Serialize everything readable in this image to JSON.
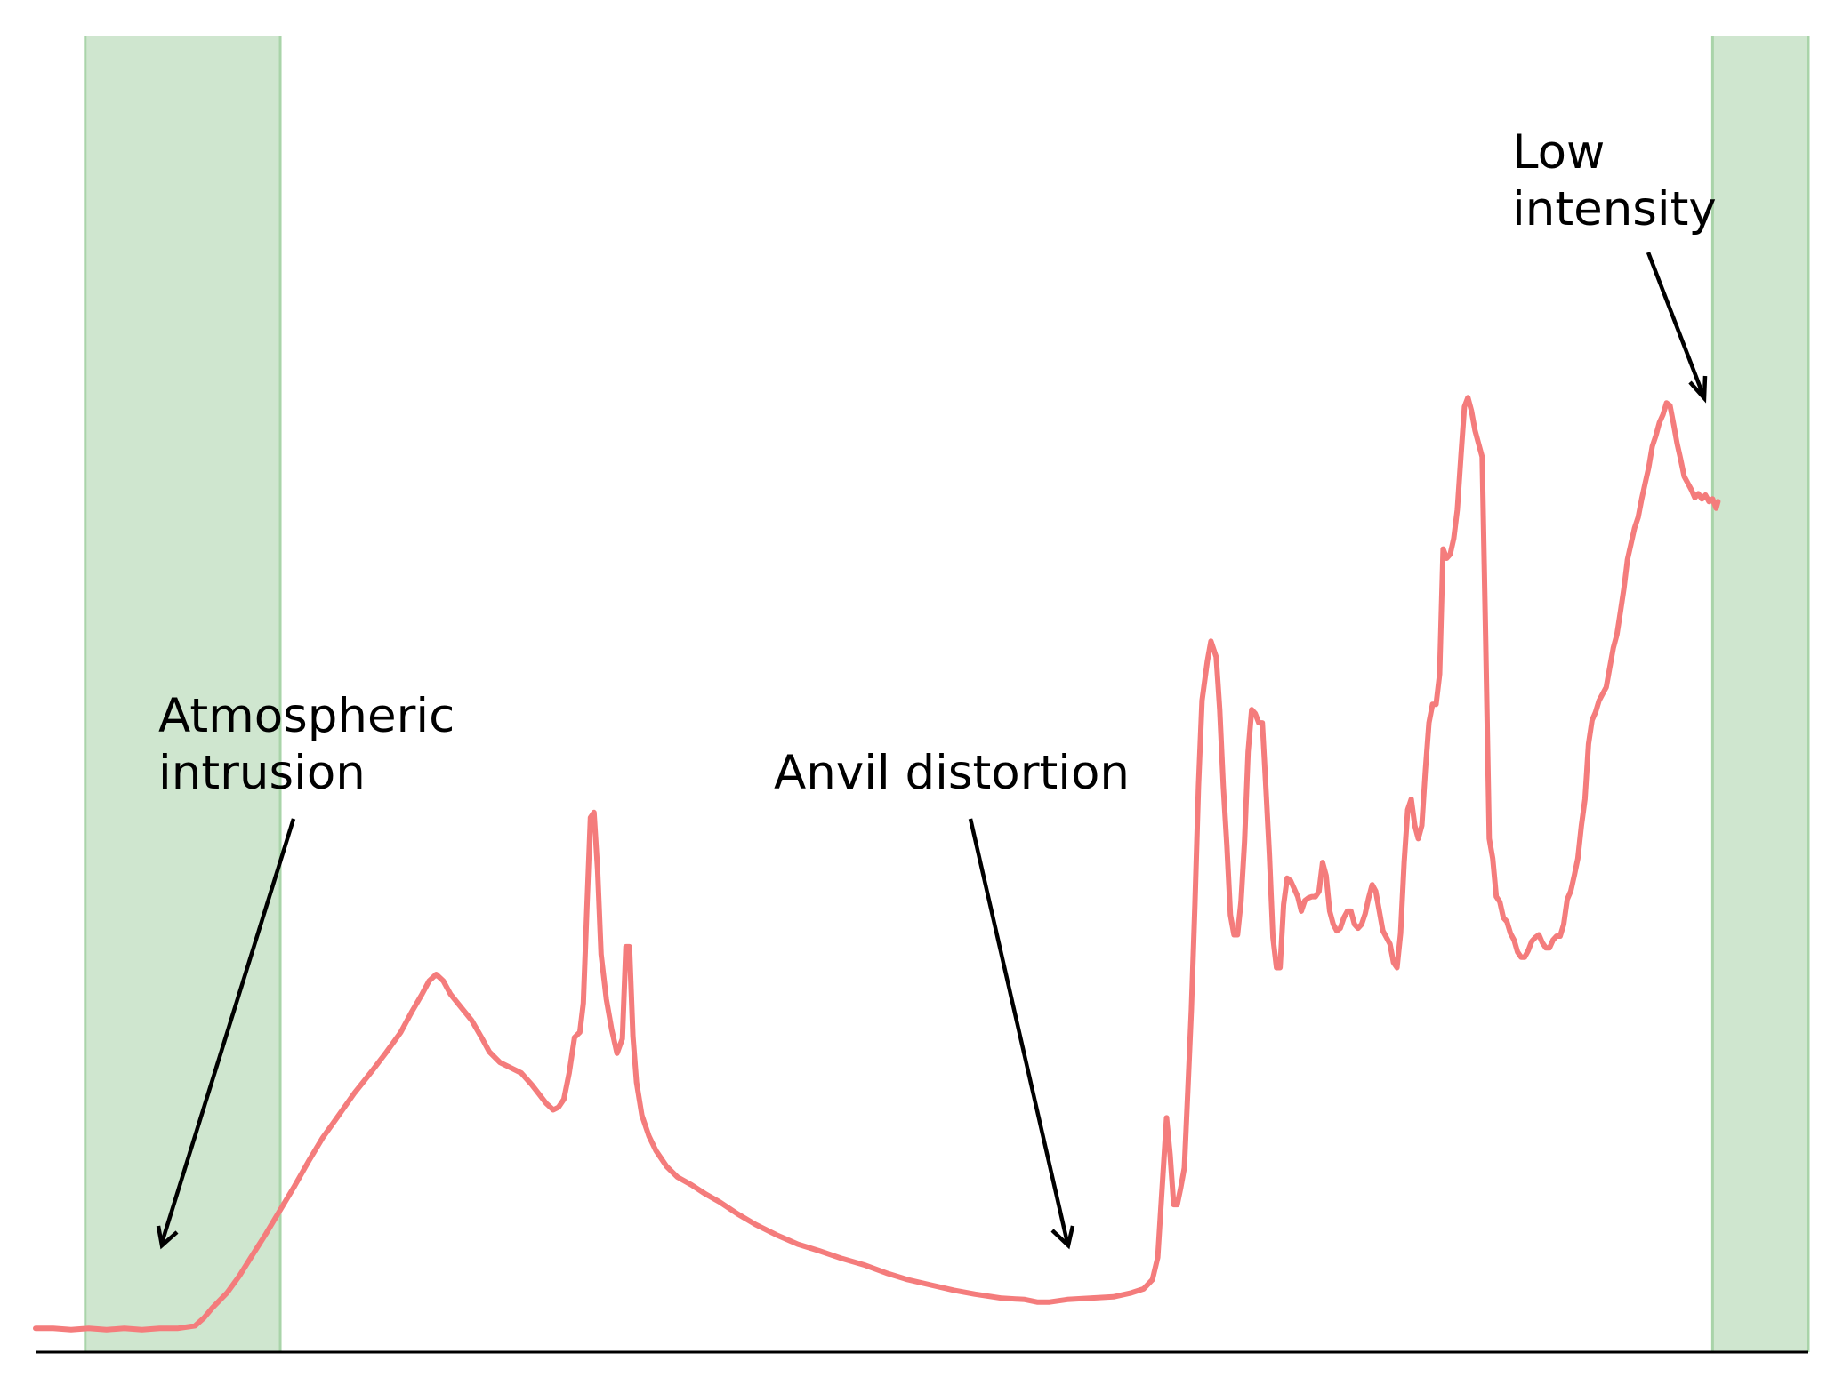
{
  "chart_data": {
    "type": "line",
    "title": "",
    "xlabel": "",
    "ylabel": "",
    "xlim": [
      0,
      1000
    ],
    "ylim": [
      0,
      1000
    ],
    "axes": {
      "x_axis_line": true,
      "y_axis_line": false,
      "ticks": false,
      "grid": false,
      "legend": "none"
    },
    "series": [
      {
        "color": "#f47c7c",
        "points": [
          [
            0,
            18
          ],
          [
            10,
            18
          ],
          [
            20,
            17
          ],
          [
            30,
            18
          ],
          [
            40,
            17
          ],
          [
            50,
            18
          ],
          [
            60,
            17
          ],
          [
            70,
            18
          ],
          [
            80,
            18
          ],
          [
            90,
            20
          ],
          [
            95,
            26
          ],
          [
            100,
            34
          ],
          [
            108,
            45
          ],
          [
            115,
            58
          ],
          [
            122,
            73
          ],
          [
            130,
            90
          ],
          [
            138,
            108
          ],
          [
            146,
            126
          ],
          [
            154,
            145
          ],
          [
            162,
            163
          ],
          [
            170,
            178
          ],
          [
            180,
            197
          ],
          [
            190,
            214
          ],
          [
            198,
            228
          ],
          [
            206,
            243
          ],
          [
            212,
            258
          ],
          [
            218,
            272
          ],
          [
            222,
            282
          ],
          [
            226,
            287
          ],
          [
            230,
            282
          ],
          [
            234,
            272
          ],
          [
            240,
            262
          ],
          [
            246,
            252
          ],
          [
            252,
            238
          ],
          [
            256,
            228
          ],
          [
            262,
            220
          ],
          [
            268,
            216
          ],
          [
            274,
            212
          ],
          [
            280,
            203
          ],
          [
            284,
            196
          ],
          [
            288,
            189
          ],
          [
            292,
            184
          ],
          [
            295,
            186
          ],
          [
            298,
            192
          ],
          [
            301,
            212
          ],
          [
            304,
            239
          ],
          [
            307,
            243
          ],
          [
            309,
            265
          ],
          [
            311,
            337
          ],
          [
            313,
            406
          ],
          [
            315,
            410
          ],
          [
            317,
            367
          ],
          [
            319,
            302
          ],
          [
            322,
            268
          ],
          [
            325,
            245
          ],
          [
            328,
            227
          ],
          [
            331,
            238
          ],
          [
            333,
            308
          ],
          [
            335,
            308
          ],
          [
            337,
            240
          ],
          [
            339,
            205
          ],
          [
            342,
            180
          ],
          [
            346,
            164
          ],
          [
            350,
            153
          ],
          [
            356,
            141
          ],
          [
            362,
            133
          ],
          [
            370,
            127
          ],
          [
            378,
            120
          ],
          [
            386,
            114
          ],
          [
            396,
            105
          ],
          [
            406,
            97
          ],
          [
            418,
            89
          ],
          [
            430,
            82
          ],
          [
            442,
            77
          ],
          [
            455,
            71
          ],
          [
            468,
            66
          ],
          [
            480,
            60
          ],
          [
            492,
            55
          ],
          [
            505,
            51
          ],
          [
            518,
            47
          ],
          [
            530,
            44
          ],
          [
            545,
            41
          ],
          [
            558,
            40
          ],
          [
            565,
            38
          ],
          [
            572,
            38
          ],
          [
            582,
            40
          ],
          [
            595,
            41
          ],
          [
            608,
            42
          ],
          [
            618,
            45
          ],
          [
            625,
            48
          ],
          [
            630,
            55
          ],
          [
            633,
            72
          ],
          [
            636,
            135
          ],
          [
            638,
            178
          ],
          [
            640,
            150
          ],
          [
            642,
            112
          ],
          [
            644,
            112
          ],
          [
            646,
            125
          ],
          [
            648,
            140
          ],
          [
            650,
            200
          ],
          [
            652,
            260
          ],
          [
            654,
            340
          ],
          [
            656,
            430
          ],
          [
            658,
            495
          ],
          [
            661,
            525
          ],
          [
            663,
            540
          ],
          [
            666,
            528
          ],
          [
            668,
            488
          ],
          [
            670,
            430
          ],
          [
            672,
            385
          ],
          [
            674,
            332
          ],
          [
            676,
            317
          ],
          [
            678,
            317
          ],
          [
            680,
            342
          ],
          [
            682,
            388
          ],
          [
            684,
            456
          ],
          [
            686,
            488
          ],
          [
            688,
            485
          ],
          [
            690,
            478
          ],
          [
            692,
            478
          ],
          [
            694,
            430
          ],
          [
            696,
            378
          ],
          [
            698,
            315
          ],
          [
            700,
            292
          ],
          [
            702,
            292
          ],
          [
            704,
            340
          ],
          [
            706,
            360
          ],
          [
            708,
            358
          ],
          [
            710,
            352
          ],
          [
            712,
            346
          ],
          [
            714,
            335
          ],
          [
            716,
            343
          ],
          [
            718,
            345
          ],
          [
            720,
            346
          ],
          [
            722,
            346
          ],
          [
            724,
            350
          ],
          [
            726,
            372
          ],
          [
            728,
            362
          ],
          [
            730,
            335
          ],
          [
            732,
            325
          ],
          [
            734,
            320
          ],
          [
            736,
            322
          ],
          [
            738,
            330
          ],
          [
            740,
            335
          ],
          [
            742,
            335
          ],
          [
            744,
            325
          ],
          [
            746,
            322
          ],
          [
            748,
            325
          ],
          [
            750,
            333
          ],
          [
            752,
            345
          ],
          [
            754,
            355
          ],
          [
            756,
            350
          ],
          [
            758,
            335
          ],
          [
            760,
            320
          ],
          [
            762,
            315
          ],
          [
            764,
            310
          ],
          [
            766,
            296
          ],
          [
            768,
            292
          ],
          [
            770,
            318
          ],
          [
            772,
            372
          ],
          [
            774,
            412
          ],
          [
            776,
            420
          ],
          [
            778,
            400
          ],
          [
            780,
            390
          ],
          [
            782,
            400
          ],
          [
            784,
            442
          ],
          [
            786,
            478
          ],
          [
            788,
            492
          ],
          [
            790,
            492
          ],
          [
            792,
            515
          ],
          [
            794,
            610
          ],
          [
            796,
            603
          ],
          [
            798,
            606
          ],
          [
            800,
            618
          ],
          [
            802,
            640
          ],
          [
            804,
            680
          ],
          [
            806,
            718
          ],
          [
            808,
            725
          ],
          [
            810,
            715
          ],
          [
            812,
            700
          ],
          [
            814,
            690
          ],
          [
            816,
            680
          ],
          [
            818,
            540
          ],
          [
            820,
            390
          ],
          [
            822,
            375
          ],
          [
            824,
            346
          ],
          [
            826,
            342
          ],
          [
            828,
            330
          ],
          [
            830,
            327
          ],
          [
            832,
            318
          ],
          [
            834,
            313
          ],
          [
            836,
            304
          ],
          [
            838,
            300
          ],
          [
            840,
            300
          ],
          [
            842,
            305
          ],
          [
            844,
            312
          ],
          [
            846,
            315
          ],
          [
            848,
            317
          ],
          [
            850,
            311
          ],
          [
            852,
            307
          ],
          [
            854,
            307
          ],
          [
            856,
            313
          ],
          [
            858,
            316
          ],
          [
            860,
            316
          ],
          [
            862,
            325
          ],
          [
            864,
            344
          ],
          [
            866,
            350
          ],
          [
            868,
            362
          ],
          [
            870,
            375
          ],
          [
            872,
            400
          ],
          [
            874,
            420
          ],
          [
            876,
            462
          ],
          [
            878,
            480
          ],
          [
            880,
            486
          ],
          [
            882,
            495
          ],
          [
            884,
            500
          ],
          [
            886,
            505
          ],
          [
            888,
            520
          ],
          [
            890,
            535
          ],
          [
            892,
            545
          ],
          [
            894,
            562
          ],
          [
            896,
            580
          ],
          [
            898,
            602
          ],
          [
            900,
            614
          ],
          [
            902,
            626
          ],
          [
            904,
            634
          ],
          [
            906,
            648
          ],
          [
            908,
            660
          ],
          [
            910,
            672
          ],
          [
            912,
            688
          ],
          [
            914,
            696
          ],
          [
            916,
            706
          ],
          [
            918,
            712
          ],
          [
            920,
            721
          ],
          [
            922,
            719
          ],
          [
            924,
            705
          ],
          [
            926,
            690
          ],
          [
            928,
            678
          ],
          [
            930,
            665
          ],
          [
            932,
            660
          ],
          [
            934,
            655
          ],
          [
            936,
            649
          ],
          [
            938,
            652
          ],
          [
            940,
            648
          ],
          [
            942,
            651
          ],
          [
            944,
            646
          ],
          [
            946,
            648
          ],
          [
            948,
            641
          ],
          [
            949,
            646
          ]
        ]
      }
    ],
    "highlight_regions": [
      {
        "x": [
          28,
          138
        ],
        "color": "#cfe6cf"
      },
      {
        "x": [
          946,
          1000
        ],
        "color": "#cfe6cf"
      }
    ],
    "annotations": [
      {
        "text": "Atmospheric\nintrusion",
        "lines": [
          "Atmospheric",
          "intrusion"
        ],
        "arrow_to": [
          70,
          70
        ]
      },
      {
        "text": "Anvil distortion",
        "lines": [
          "Anvil distortion"
        ],
        "arrow_to": [
          582,
          70
        ]
      },
      {
        "text": "Low\nintensity",
        "lines": [
          "Low",
          "intensity"
        ],
        "arrow_to": [
          944,
          722
        ]
      }
    ]
  }
}
